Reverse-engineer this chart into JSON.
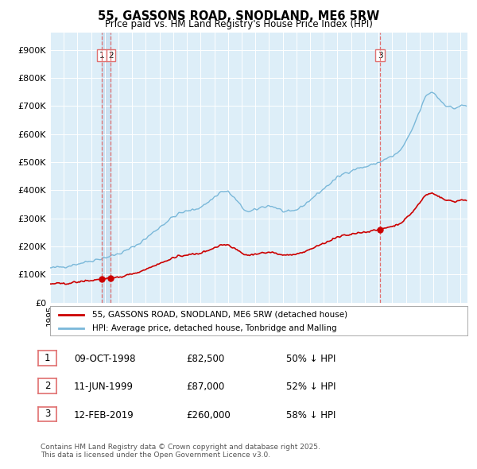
{
  "title": "55, GASSONS ROAD, SNODLAND, ME6 5RW",
  "subtitle": "Price paid vs. HM Land Registry's House Price Index (HPI)",
  "ylabel_ticks": [
    "£0",
    "£100K",
    "£200K",
    "£300K",
    "£400K",
    "£500K",
    "£600K",
    "£700K",
    "£800K",
    "£900K"
  ],
  "ytick_values": [
    0,
    100000,
    200000,
    300000,
    400000,
    500000,
    600000,
    700000,
    800000,
    900000
  ],
  "ylim": [
    0,
    960000
  ],
  "xlim_start": 1995.0,
  "xlim_end": 2025.5,
  "hpi_color": "#7ab8d9",
  "price_color": "#cc0000",
  "vline_color": "#e07070",
  "bg_color": "#ddeef8",
  "band_color": "#c8dff0",
  "transactions": [
    {
      "date_num": 1998.77,
      "price": 82500,
      "label": "1"
    },
    {
      "date_num": 1999.44,
      "price": 87000,
      "label": "2"
    },
    {
      "date_num": 2019.12,
      "price": 260000,
      "label": "3"
    }
  ],
  "legend_line1": "55, GASSONS ROAD, SNODLAND, ME6 5RW (detached house)",
  "legend_line2": "HPI: Average price, detached house, Tonbridge and Malling",
  "table_rows": [
    {
      "label": "1",
      "date": "09-OCT-1998",
      "price": "£82,500",
      "pct": "50% ↓ HPI"
    },
    {
      "label": "2",
      "date": "11-JUN-1999",
      "price": "£87,000",
      "pct": "52% ↓ HPI"
    },
    {
      "label": "3",
      "date": "12-FEB-2019",
      "price": "£260,000",
      "pct": "58% ↓ HPI"
    }
  ],
  "footnote": "Contains HM Land Registry data © Crown copyright and database right 2025.\nThis data is licensed under the Open Government Licence v3.0."
}
